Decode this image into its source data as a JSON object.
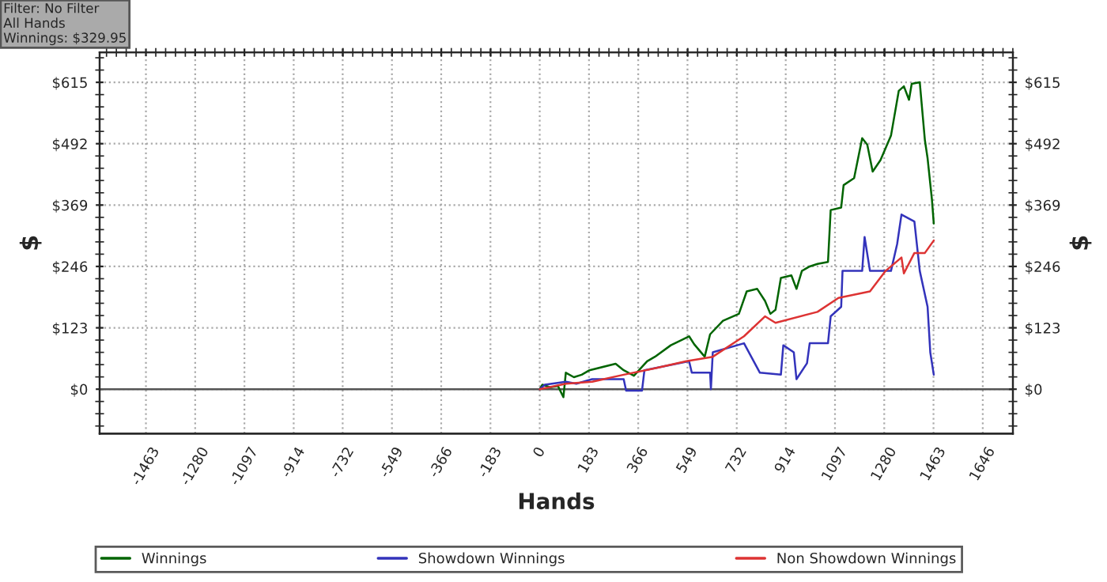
{
  "chart_data": {
    "type": "line",
    "xlabel": "Hands",
    "ylabel": "$",
    "y2label": "$",
    "annotations": [
      "Filter: No Filter\nAll Hands\nWinnings: $329.95"
    ],
    "xlim": [
      -1635,
      1758
    ],
    "xticks": [
      -1463,
      -1280,
      -1097,
      -914,
      -732,
      -549,
      -366,
      -183,
      0,
      183,
      366,
      549,
      732,
      914,
      1097,
      1280,
      1463,
      1646
    ],
    "ylim": [
      -89,
      675
    ],
    "yticks": [
      {
        "value": 0,
        "label": "$0"
      },
      {
        "value": 123,
        "label": "$123"
      },
      {
        "value": 246,
        "label": "$246"
      },
      {
        "value": 369,
        "label": "$369"
      },
      {
        "value": 492,
        "label": "$492"
      },
      {
        "value": 615,
        "label": "$615"
      }
    ],
    "y2lim": [
      -89,
      675
    ],
    "y2ticks": [
      {
        "value": 0,
        "label": "$0"
      },
      {
        "value": 123,
        "label": "$123"
      },
      {
        "value": 246,
        "label": "$246"
      },
      {
        "value": 369,
        "label": "$369"
      },
      {
        "value": 492,
        "label": "$492"
      },
      {
        "value": 615,
        "label": "$615"
      }
    ],
    "grid": true,
    "legend": "bottom",
    "line_style": "solid",
    "ref_lines": [
      {
        "axis": "y",
        "value": 0,
        "color": "#555555"
      }
    ],
    "series": [
      {
        "name": "Winnings",
        "color": "#006400",
        "x": [
          0,
          10,
          39,
          68,
          88,
          97,
          127,
          156,
          185,
          282,
          312,
          350,
          399,
          428,
          487,
          555,
          574,
          613,
          633,
          681,
          740,
          769,
          808,
          837,
          857,
          876,
          896,
          935,
          954,
          974,
          1003,
          1032,
          1071,
          1081,
          1120,
          1129,
          1168,
          1198,
          1217,
          1237,
          1266,
          1305,
          1334,
          1353,
          1372,
          1382,
          1412,
          1431,
          1441,
          1457,
          1464
        ],
        "values": [
          0,
          9,
          4,
          6,
          -16,
          33,
          24,
          29,
          38,
          51,
          38,
          27,
          56,
          65,
          88,
          106,
          90,
          65,
          110,
          137,
          151,
          196,
          201,
          177,
          151,
          159,
          223,
          228,
          201,
          237,
          246,
          251,
          255,
          359,
          364,
          409,
          423,
          503,
          490,
          436,
          459,
          508,
          598,
          607,
          580,
          612,
          615,
          499,
          463,
          381,
          332
        ]
      },
      {
        "name": "Showdown Winnings",
        "color": "#3333bb",
        "x": [
          0,
          19,
          97,
          136,
          195,
          312,
          321,
          380,
          389,
          555,
          565,
          633,
          636,
          643,
          759,
          818,
          896,
          905,
          944,
          954,
          993,
          1003,
          1071,
          1081,
          1120,
          1125,
          1198,
          1207,
          1227,
          1305,
          1328,
          1344,
          1392,
          1412,
          1441,
          1451,
          1464
        ],
        "values": [
          0,
          9,
          15,
          11,
          20,
          20,
          -3,
          -3,
          38,
          56,
          33,
          33,
          0,
          74,
          92,
          33,
          29,
          88,
          74,
          20,
          52,
          92,
          92,
          146,
          165,
          237,
          237,
          305,
          237,
          237,
          291,
          350,
          336,
          237,
          165,
          74,
          29
        ]
      },
      {
        "name": "Non Showdown Winnings",
        "color": "#dd3333",
        "x": [
          0,
          97,
          195,
          312,
          428,
          545,
          643,
          759,
          837,
          876,
          1032,
          1110,
          1227,
          1285,
          1344,
          1353,
          1392,
          1431,
          1464
        ],
        "values": [
          0,
          11,
          15,
          29,
          42,
          56,
          65,
          106,
          146,
          133,
          155,
          183,
          196,
          237,
          264,
          232,
          273,
          273,
          298
        ]
      }
    ]
  }
}
